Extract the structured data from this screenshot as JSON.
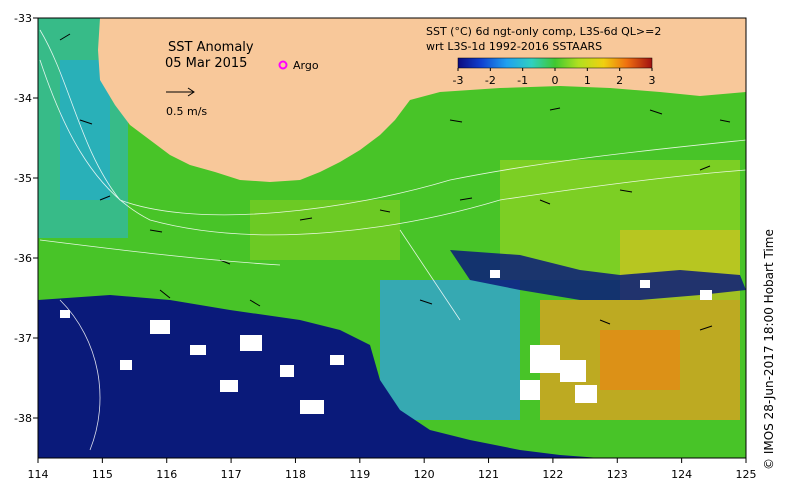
{
  "map": {
    "title": "SST Anomaly",
    "date": "05 Mar 2015",
    "scale_label": "0.5 m/s",
    "argo_label": "Argo",
    "product_line1": "SST (°C) 6d ngt-only comp, L3S-6d QL>=2",
    "product_line2": "wrt L3S-1d 1992-2016 SSTAARS",
    "credit": "© IMOS 28-Jun-2017 18:00 Hobart Time",
    "colors": {
      "land": "#f8c89a",
      "ocean_green": "#4ec82a",
      "nodata_navy": "#0a1a7a",
      "cloud_white": "#ffffff"
    }
  },
  "colorbar": {
    "ticks": [
      "-3",
      "-2",
      "-1",
      "0",
      "1",
      "2",
      "3"
    ],
    "min": -3,
    "max": 3
  },
  "axes": {
    "x_ticks": [
      "114",
      "115",
      "116",
      "117",
      "118",
      "119",
      "120",
      "121",
      "122",
      "123",
      "124",
      "125"
    ],
    "y_ticks": [
      "-33",
      "-34",
      "-35",
      "-36",
      "-37",
      "-38"
    ]
  }
}
